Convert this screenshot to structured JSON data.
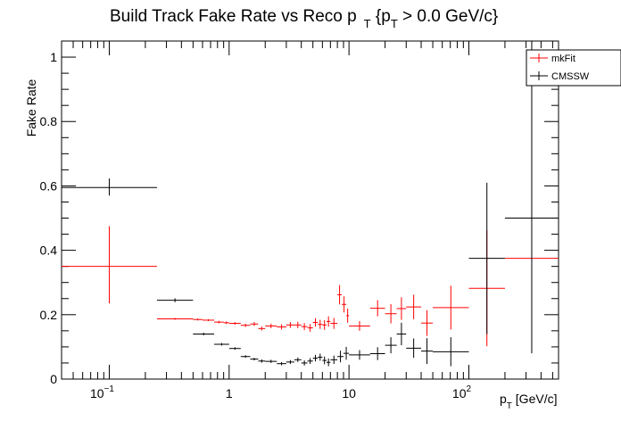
{
  "chart_data": {
    "type": "scatter",
    "title_main": "Build Track Fake Rate vs Reco p",
    "title_sub": "T",
    "title_rest_open": " {p",
    "title_rest_sub": "T",
    "title_rest_close": " > 0.0 GeV/c}",
    "ylabel": "Fake Rate",
    "xlabel_main": "p",
    "xlabel_sub": "T",
    "xlabel_rest": " [GeV/c]",
    "xscale": "log",
    "xlim": [
      0.04,
      560
    ],
    "ylim": [
      0,
      1.05
    ],
    "x_tick_labels": [
      {
        "base": "10",
        "exp": "−1",
        "value": 0.1
      },
      {
        "text": "1",
        "value": 1
      },
      {
        "text": "10",
        "value": 10
      },
      {
        "base": "10",
        "exp": "2",
        "value": 100
      }
    ],
    "y_tick_labels": [
      "0",
      "0.2",
      "0.4",
      "0.6",
      "0.8",
      "1"
    ],
    "y_tick_values": [
      0,
      0.2,
      0.4,
      0.6,
      0.8,
      1.0
    ],
    "legend_position": "top-right",
    "series": [
      {
        "name": "mkFit",
        "color": "#ff0000",
        "points": [
          {
            "xlo": 0.04,
            "xhi": 0.25,
            "y": 0.35,
            "elo": 0.115,
            "ehi": 0.125
          },
          {
            "xlo": 0.25,
            "xhi": 0.5,
            "y": 0.187,
            "elo": 0.003,
            "ehi": 0.003
          },
          {
            "xlo": 0.5,
            "xhi": 0.6,
            "y": 0.185,
            "elo": 0.003,
            "ehi": 0.003
          },
          {
            "xlo": 0.6,
            "xhi": 0.75,
            "y": 0.183,
            "elo": 0.003,
            "ehi": 0.003
          },
          {
            "xlo": 0.75,
            "xhi": 0.9,
            "y": 0.177,
            "elo": 0.004,
            "ehi": 0.004
          },
          {
            "xlo": 0.9,
            "xhi": 1.0,
            "y": 0.175,
            "elo": 0.004,
            "ehi": 0.004
          },
          {
            "xlo": 1.0,
            "xhi": 1.25,
            "y": 0.173,
            "elo": 0.004,
            "ehi": 0.004
          },
          {
            "xlo": 1.25,
            "xhi": 1.5,
            "y": 0.167,
            "elo": 0.005,
            "ehi": 0.005
          },
          {
            "xlo": 1.5,
            "xhi": 1.75,
            "y": 0.171,
            "elo": 0.006,
            "ehi": 0.006
          },
          {
            "xlo": 1.75,
            "xhi": 2.0,
            "y": 0.157,
            "elo": 0.006,
            "ehi": 0.006
          },
          {
            "xlo": 2.0,
            "xhi": 2.5,
            "y": 0.165,
            "elo": 0.007,
            "ehi": 0.007
          },
          {
            "xlo": 2.5,
            "xhi": 3.0,
            "y": 0.162,
            "elo": 0.008,
            "ehi": 0.008
          },
          {
            "xlo": 3.0,
            "xhi": 3.5,
            "y": 0.168,
            "elo": 0.009,
            "ehi": 0.009
          },
          {
            "xlo": 3.5,
            "xhi": 4.0,
            "y": 0.168,
            "elo": 0.01,
            "ehi": 0.01
          },
          {
            "xlo": 4.0,
            "xhi": 4.5,
            "y": 0.163,
            "elo": 0.011,
            "ehi": 0.011
          },
          {
            "xlo": 4.5,
            "xhi": 5.0,
            "y": 0.159,
            "elo": 0.012,
            "ehi": 0.012
          },
          {
            "xlo": 5.0,
            "xhi": 5.5,
            "y": 0.176,
            "elo": 0.013,
            "ehi": 0.013
          },
          {
            "xlo": 5.5,
            "xhi": 6.0,
            "y": 0.17,
            "elo": 0.014,
            "ehi": 0.014
          },
          {
            "xlo": 6.0,
            "xhi": 6.5,
            "y": 0.168,
            "elo": 0.015,
            "ehi": 0.015
          },
          {
            "xlo": 6.5,
            "xhi": 7.0,
            "y": 0.179,
            "elo": 0.016,
            "ehi": 0.016
          },
          {
            "xlo": 7.0,
            "xhi": 8.0,
            "y": 0.173,
            "elo": 0.017,
            "ehi": 0.017
          },
          {
            "xlo": 8.0,
            "xhi": 8.7,
            "y": 0.262,
            "elo": 0.03,
            "ehi": 0.03
          },
          {
            "xlo": 8.7,
            "xhi": 9.5,
            "y": 0.232,
            "elo": 0.025,
            "ehi": 0.025
          },
          {
            "xlo": 9.5,
            "xhi": 10,
            "y": 0.197,
            "elo": 0.022,
            "ehi": 0.022
          },
          {
            "xlo": 10,
            "xhi": 15,
            "y": 0.165,
            "elo": 0.015,
            "ehi": 0.015
          },
          {
            "xlo": 15,
            "xhi": 20,
            "y": 0.22,
            "elo": 0.025,
            "ehi": 0.025
          },
          {
            "xlo": 20,
            "xhi": 25,
            "y": 0.203,
            "elo": 0.03,
            "ehi": 0.03
          },
          {
            "xlo": 25,
            "xhi": 30,
            "y": 0.219,
            "elo": 0.035,
            "ehi": 0.035
          },
          {
            "xlo": 30,
            "xhi": 40,
            "y": 0.224,
            "elo": 0.038,
            "ehi": 0.038
          },
          {
            "xlo": 40,
            "xhi": 50,
            "y": 0.174,
            "elo": 0.04,
            "ehi": 0.04
          },
          {
            "xlo": 50,
            "xhi": 100,
            "y": 0.222,
            "elo": 0.068,
            "ehi": 0.068
          },
          {
            "xlo": 100,
            "xhi": 200,
            "y": 0.282,
            "elo": 0.18,
            "ehi": 0.18
          },
          {
            "xlo": 200,
            "xhi": 560,
            "y": 0.375,
            "elo": 0.0,
            "ehi": 0.0
          }
        ]
      },
      {
        "name": "CMSSW",
        "color": "#000000",
        "points": [
          {
            "xlo": 0.04,
            "xhi": 0.25,
            "y": 0.595,
            "elo": 0.025,
            "ehi": 0.028
          },
          {
            "xlo": 0.25,
            "xhi": 0.5,
            "y": 0.245,
            "elo": 0.006,
            "ehi": 0.006
          },
          {
            "xlo": 0.5,
            "xhi": 0.75,
            "y": 0.14,
            "elo": 0.004,
            "ehi": 0.004
          },
          {
            "xlo": 0.75,
            "xhi": 1.0,
            "y": 0.108,
            "elo": 0.004,
            "ehi": 0.004
          },
          {
            "xlo": 1.0,
            "xhi": 1.25,
            "y": 0.095,
            "elo": 0.004,
            "ehi": 0.004
          },
          {
            "xlo": 1.25,
            "xhi": 1.5,
            "y": 0.07,
            "elo": 0.004,
            "ehi": 0.004
          },
          {
            "xlo": 1.5,
            "xhi": 1.75,
            "y": 0.062,
            "elo": 0.004,
            "ehi": 0.004
          },
          {
            "xlo": 1.75,
            "xhi": 2.0,
            "y": 0.056,
            "elo": 0.005,
            "ehi": 0.005
          },
          {
            "xlo": 2.0,
            "xhi": 2.5,
            "y": 0.055,
            "elo": 0.005,
            "ehi": 0.005
          },
          {
            "xlo": 2.5,
            "xhi": 3.0,
            "y": 0.048,
            "elo": 0.005,
            "ehi": 0.005
          },
          {
            "xlo": 3.0,
            "xhi": 3.5,
            "y": 0.053,
            "elo": 0.006,
            "ehi": 0.006
          },
          {
            "xlo": 3.5,
            "xhi": 4.0,
            "y": 0.06,
            "elo": 0.007,
            "ehi": 0.007
          },
          {
            "xlo": 4.0,
            "xhi": 4.5,
            "y": 0.05,
            "elo": 0.008,
            "ehi": 0.008
          },
          {
            "xlo": 4.5,
            "xhi": 5.0,
            "y": 0.056,
            "elo": 0.009,
            "ehi": 0.009
          },
          {
            "xlo": 5.0,
            "xhi": 5.5,
            "y": 0.065,
            "elo": 0.01,
            "ehi": 0.01
          },
          {
            "xlo": 5.5,
            "xhi": 6.0,
            "y": 0.068,
            "elo": 0.011,
            "ehi": 0.011
          },
          {
            "xlo": 6.0,
            "xhi": 6.5,
            "y": 0.058,
            "elo": 0.012,
            "ehi": 0.012
          },
          {
            "xlo": 6.5,
            "xhi": 7.0,
            "y": 0.052,
            "elo": 0.012,
            "ehi": 0.012
          },
          {
            "xlo": 7.0,
            "xhi": 8.0,
            "y": 0.06,
            "elo": 0.013,
            "ehi": 0.013
          },
          {
            "xlo": 8.0,
            "xhi": 9.0,
            "y": 0.07,
            "elo": 0.018,
            "ehi": 0.018
          },
          {
            "xlo": 9.0,
            "xhi": 10,
            "y": 0.08,
            "elo": 0.02,
            "ehi": 0.02
          },
          {
            "xlo": 10,
            "xhi": 15,
            "y": 0.075,
            "elo": 0.015,
            "ehi": 0.015
          },
          {
            "xlo": 15,
            "xhi": 20,
            "y": 0.079,
            "elo": 0.02,
            "ehi": 0.02
          },
          {
            "xlo": 20,
            "xhi": 25,
            "y": 0.105,
            "elo": 0.025,
            "ehi": 0.025
          },
          {
            "xlo": 25,
            "xhi": 30,
            "y": 0.14,
            "elo": 0.035,
            "ehi": 0.035
          },
          {
            "xlo": 30,
            "xhi": 40,
            "y": 0.096,
            "elo": 0.03,
            "ehi": 0.03
          },
          {
            "xlo": 40,
            "xhi": 50,
            "y": 0.087,
            "elo": 0.04,
            "ehi": 0.04
          },
          {
            "xlo": 50,
            "xhi": 100,
            "y": 0.085,
            "elo": 0.045,
            "ehi": 0.045
          },
          {
            "xlo": 100,
            "xhi": 200,
            "y": 0.375,
            "elo": 0.235,
            "ehi": 0.235
          },
          {
            "xlo": 200,
            "xhi": 560,
            "y": 0.5,
            "elo": 0.42,
            "ehi": 0.55
          }
        ]
      }
    ]
  }
}
